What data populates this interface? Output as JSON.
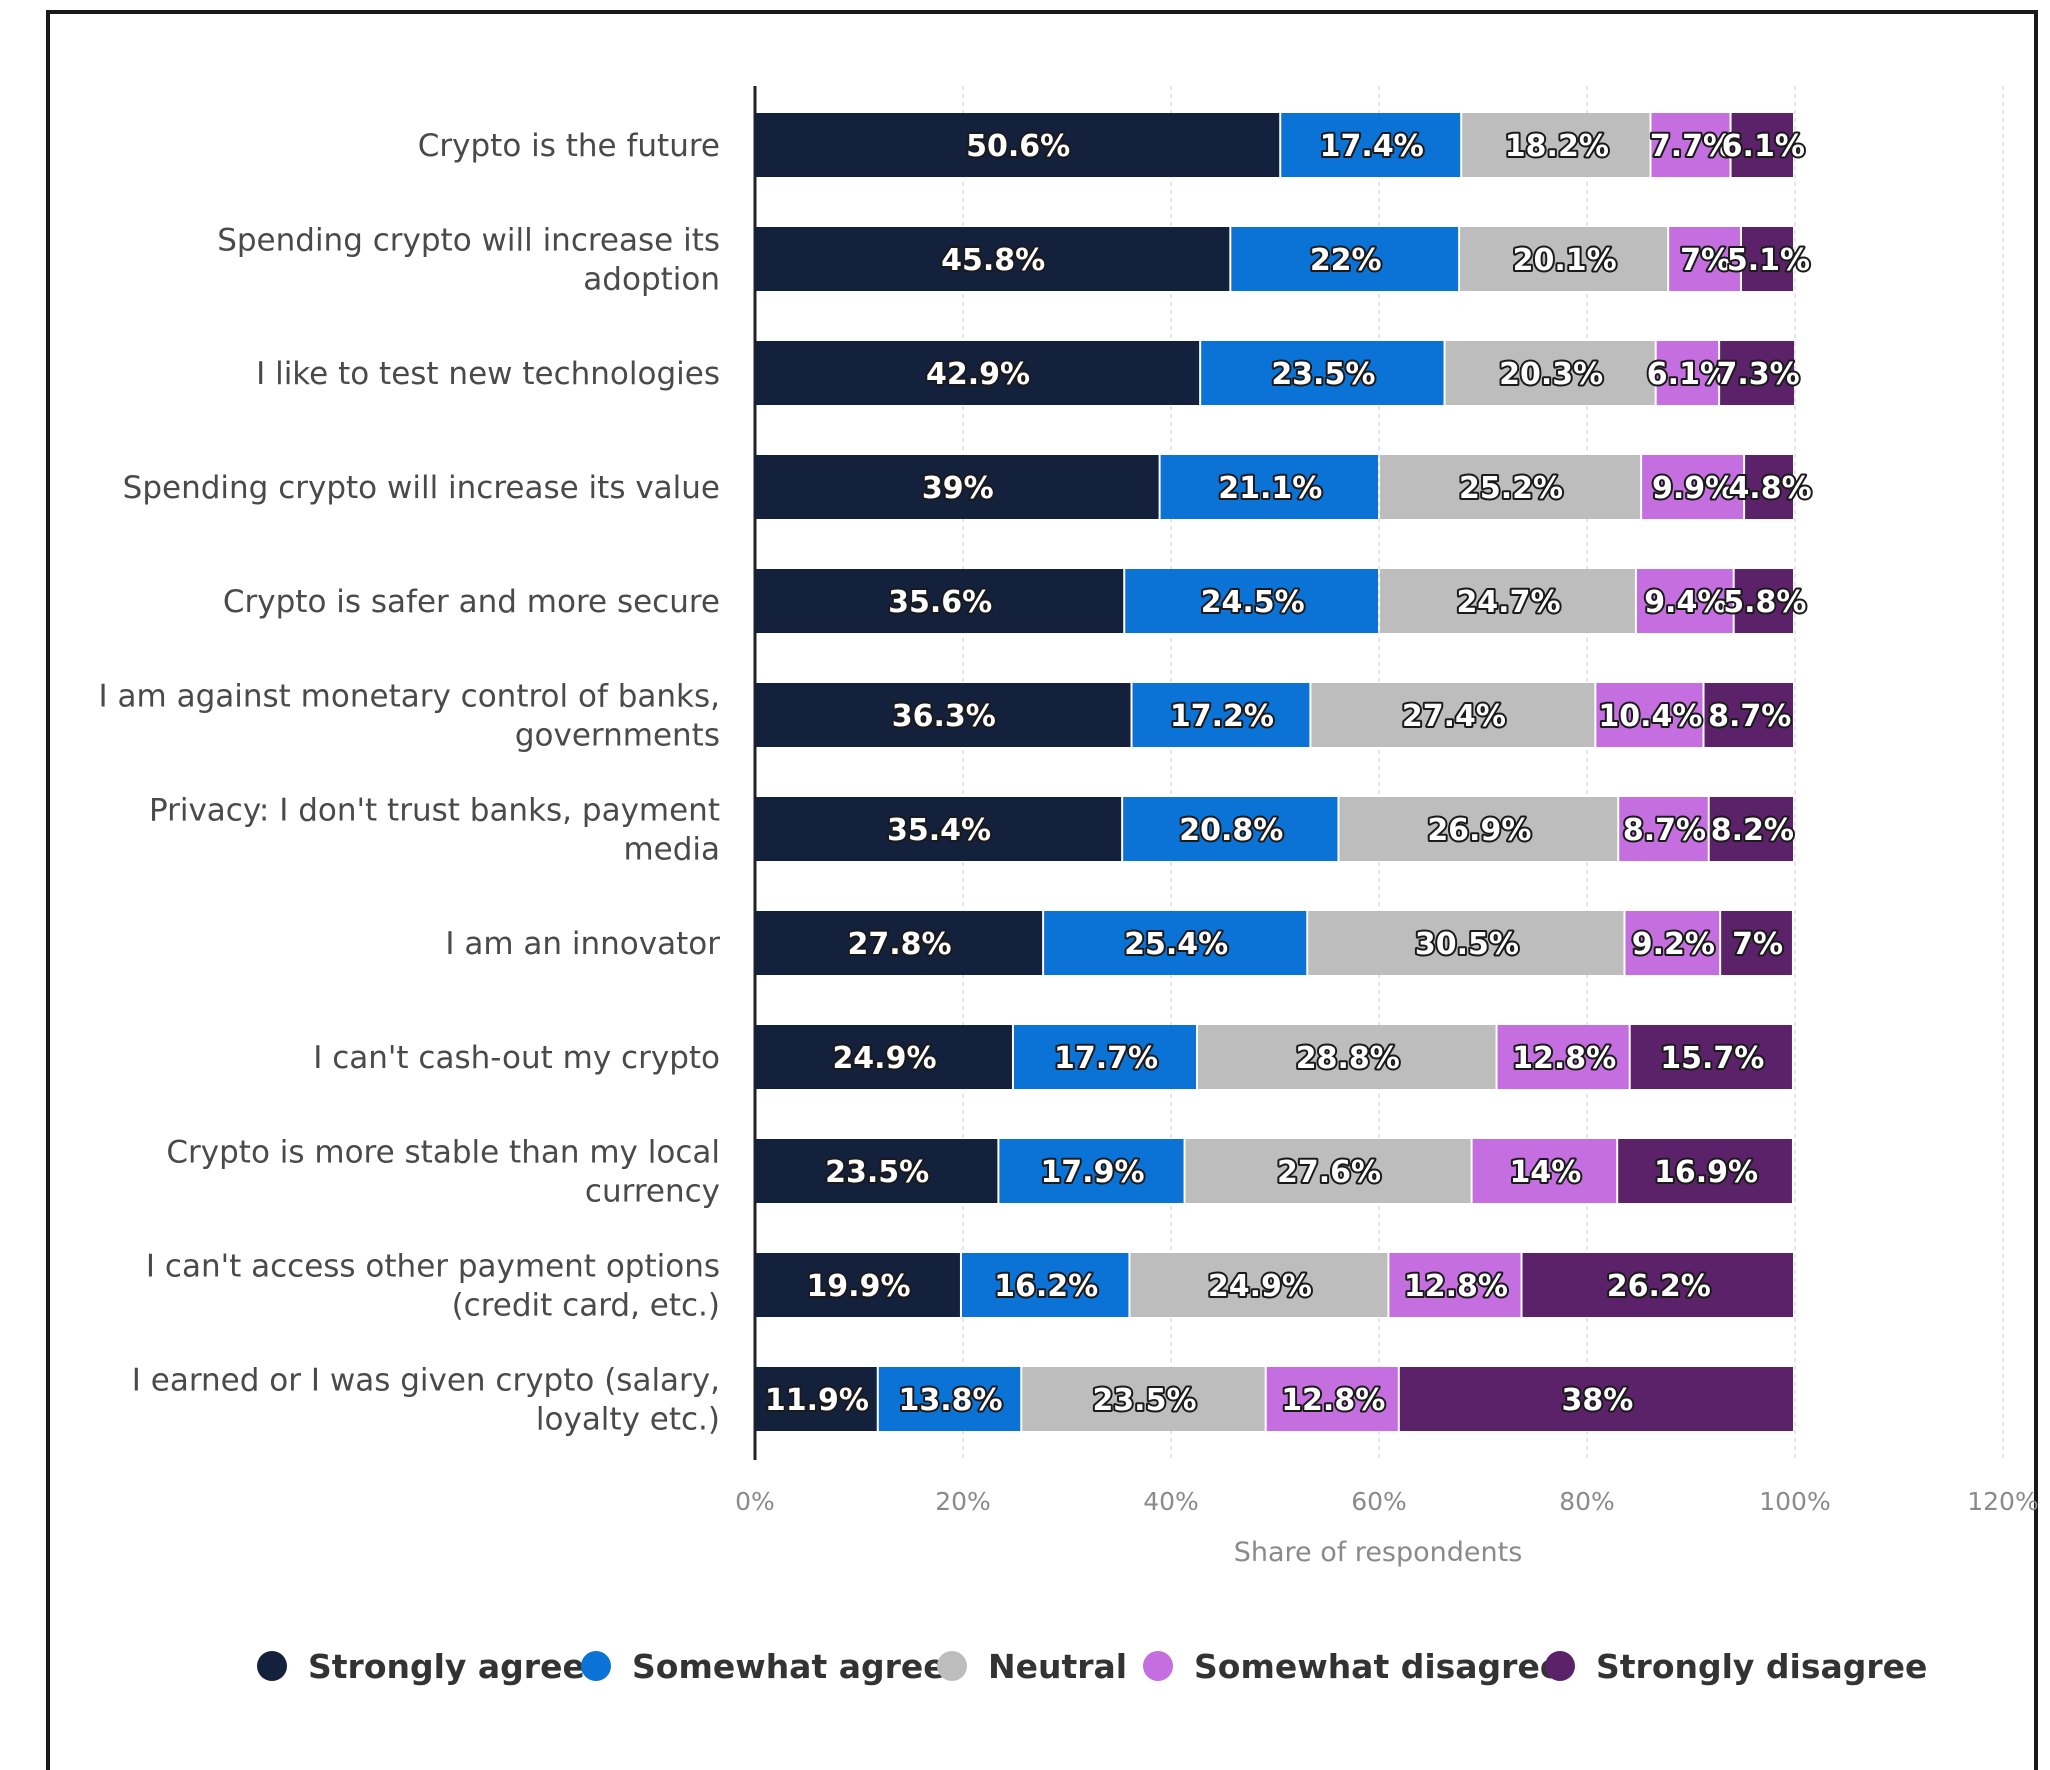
{
  "chart_data": {
    "type": "bar",
    "orientation": "horizontal",
    "stacked": true,
    "title": "",
    "xlabel": "Share of respondents",
    "ylabel": "",
    "xlim": [
      0,
      120
    ],
    "x_ticks": [
      "0%",
      "20%",
      "40%",
      "60%",
      "80%",
      "100%",
      "120%"
    ],
    "grid": true,
    "legend_position": "bottom",
    "categories": [
      [
        "Crypto is the future"
      ],
      [
        "Spending crypto will increase its",
        "adoption"
      ],
      [
        "I like to test new technologies"
      ],
      [
        "Spending crypto will increase its value"
      ],
      [
        "Crypto is safer and more secure"
      ],
      [
        "I am against monetary control of banks,",
        "governments"
      ],
      [
        "Privacy: I don't trust banks, payment",
        "media"
      ],
      [
        "I am an innovator"
      ],
      [
        "I can't cash-out my crypto"
      ],
      [
        "Crypto is more stable than my local",
        "currency"
      ],
      [
        "I can't access other payment options",
        "(credit card, etc.)"
      ],
      [
        "I earned or I was given crypto (salary,",
        "loyalty etc.)"
      ]
    ],
    "series": [
      {
        "name": "Strongly agree",
        "color": "#13213d",
        "values": [
          50.6,
          45.8,
          42.9,
          39,
          35.6,
          36.3,
          35.4,
          27.8,
          24.9,
          23.5,
          19.9,
          11.9
        ],
        "labels": [
          "50.6%",
          "45.8%",
          "42.9%",
          "39%",
          "35.6%",
          "36.3%",
          "35.4%",
          "27.8%",
          "24.9%",
          "23.5%",
          "19.9%",
          "11.9%"
        ]
      },
      {
        "name": "Somewhat agree",
        "color": "#0b72d6",
        "values": [
          17.4,
          22,
          23.5,
          21.1,
          24.5,
          17.2,
          20.8,
          25.4,
          17.7,
          17.9,
          16.2,
          13.8
        ],
        "labels": [
          "17.4%",
          "22%",
          "23.5%",
          "21.1%",
          "24.5%",
          "17.2%",
          "20.8%",
          "25.4%",
          "17.7%",
          "17.9%",
          "16.2%",
          "13.8%"
        ]
      },
      {
        "name": "Neutral",
        "color": "#bdbdbd",
        "values": [
          18.2,
          20.1,
          20.3,
          25.2,
          24.7,
          27.4,
          26.9,
          30.5,
          28.8,
          27.6,
          24.9,
          23.5
        ],
        "labels": [
          "18.2%",
          "20.1%",
          "20.3%",
          "25.2%",
          "24.7%",
          "27.4%",
          "26.9%",
          "30.5%",
          "28.8%",
          "27.6%",
          "24.9%",
          "23.5%"
        ]
      },
      {
        "name": "Somewhat disagree",
        "color": "#c56ee0",
        "values": [
          7.7,
          7,
          6.1,
          9.9,
          9.4,
          10.4,
          8.7,
          9.2,
          12.8,
          14,
          12.8,
          12.8
        ],
        "labels": [
          "7.7%",
          "7%",
          "6.1%",
          "9.9%",
          "9.4%",
          "10.4%",
          "8.7%",
          "9.2%",
          "12.8%",
          "14%",
          "12.8%",
          "12.8%"
        ]
      },
      {
        "name": "Strongly disagree",
        "color": "#5b2169",
        "values": [
          6.1,
          5.1,
          7.3,
          4.8,
          5.8,
          8.7,
          8.2,
          7,
          15.7,
          16.9,
          26.2,
          38
        ],
        "labels": [
          "6.1%",
          "5.1%",
          "7.3%",
          "4.8%",
          "5.8%",
          "8.7%",
          "8.2%",
          "7%",
          "15.7%",
          "16.9%",
          "26.2%",
          "38%"
        ]
      }
    ]
  }
}
